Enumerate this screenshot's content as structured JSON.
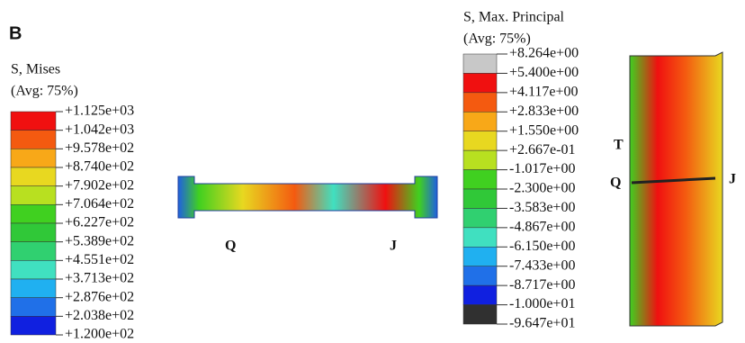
{
  "panel_label": "B",
  "legends": [
    {
      "title": "S, Mises",
      "subtitle": "(Avg: 75%)",
      "labels": [
        "+1.125e+03",
        "+1.042e+03",
        "+9.578e+02",
        "+8.740e+02",
        "+7.902e+02",
        "+7.064e+02",
        "+6.227e+02",
        "+5.389e+02",
        "+4.551e+02",
        "+3.713e+02",
        "+2.876e+02",
        "+2.038e+02",
        "+1.200e+02"
      ],
      "colors": [
        "#f01010",
        "#f45a10",
        "#f8a818",
        "#e8d820",
        "#b8e020",
        "#40d020",
        "#30c838",
        "#30d070",
        "#40e0c0",
        "#20b0f0",
        "#2070e8",
        "#1020e0"
      ]
    },
    {
      "title": "S, Max. Principal",
      "subtitle": "(Avg: 75%)",
      "labels": [
        "+8.264e+00",
        "+5.400e+00",
        "+4.117e+00",
        "+2.833e+00",
        "+1.550e+00",
        "+2.667e-01",
        "-1.017e+00",
        "-2.300e+00",
        "-3.583e+00",
        "-4.867e+00",
        "-6.150e+00",
        "-7.433e+00",
        "-8.717e+00",
        "-1.000e+01",
        "-9.647e+01"
      ],
      "colors": [
        "#c8c8c8",
        "#f01010",
        "#f45a10",
        "#f8a818",
        "#e8d820",
        "#b8e020",
        "#40d020",
        "#30c838",
        "#30d070",
        "#40e0c0",
        "#20b0f0",
        "#2070e8",
        "#1020e0",
        "#303030"
      ]
    }
  ],
  "model_labels": {
    "left": [
      "Q",
      "J"
    ],
    "right": [
      "T",
      "Q",
      "J"
    ]
  }
}
